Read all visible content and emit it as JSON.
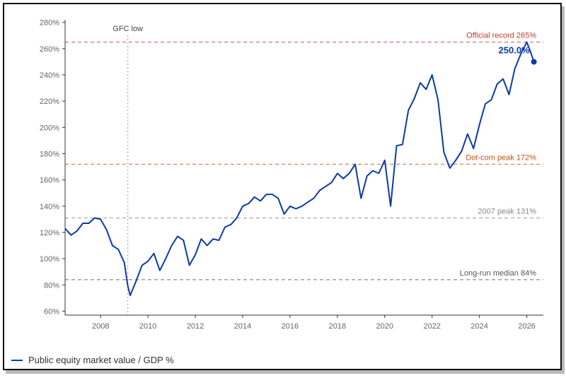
{
  "colors": {
    "series": "#0b3aa8",
    "record": "#c0392b",
    "dotcom": "#c0541a",
    "gray": "#888888"
  },
  "chart_data": {
    "type": "line",
    "title": "",
    "xlabel": "",
    "ylabel": "",
    "xlim": [
      2006.5,
      2026.7
    ],
    "ylim": [
      57,
      282
    ],
    "x_ticks": [
      2008,
      2010,
      2012,
      2014,
      2016,
      2018,
      2020,
      2022,
      2024,
      2026
    ],
    "y_ticks": [
      60,
      80,
      100,
      120,
      140,
      160,
      180,
      200,
      220,
      240,
      260,
      280
    ],
    "y_tick_labels": [
      "60%",
      "80%",
      "100%",
      "120%",
      "140%",
      "160%",
      "180%",
      "200%",
      "220%",
      "240%",
      "260%",
      "280%"
    ],
    "x_tick_labels": [
      "2008",
      "2010",
      "2012",
      "2014",
      "2016",
      "2018",
      "2020",
      "2022",
      "2024",
      "2026"
    ],
    "grid": false,
    "legend_position": "bottom-left",
    "series": [
      {
        "name": "Public equity market value / GDP %",
        "x": [
          2006.5,
          2006.75,
          2007.0,
          2007.25,
          2007.5,
          2007.75,
          2008.0,
          2008.25,
          2008.5,
          2008.75,
          2009.0,
          2009.15,
          2009.25,
          2009.5,
          2009.75,
          2010.0,
          2010.25,
          2010.5,
          2010.75,
          2011.0,
          2011.25,
          2011.5,
          2011.75,
          2012.0,
          2012.25,
          2012.5,
          2012.75,
          2013.0,
          2013.25,
          2013.5,
          2013.75,
          2014.0,
          2014.25,
          2014.5,
          2014.75,
          2015.0,
          2015.25,
          2015.5,
          2015.75,
          2016.0,
          2016.25,
          2016.5,
          2016.75,
          2017.0,
          2017.25,
          2017.5,
          2017.75,
          2018.0,
          2018.25,
          2018.5,
          2018.75,
          2019.0,
          2019.25,
          2019.5,
          2019.75,
          2020.0,
          2020.25,
          2020.5,
          2020.75,
          2021.0,
          2021.25,
          2021.5,
          2021.75,
          2022.0,
          2022.25,
          2022.5,
          2022.75,
          2023.0,
          2023.25,
          2023.5,
          2023.75,
          2024.0,
          2024.25,
          2024.5,
          2024.75,
          2025.0,
          2025.25,
          2025.5,
          2025.75,
          2026.0,
          2026.15,
          2026.3
        ],
        "y": [
          123,
          118,
          121,
          127,
          127,
          131,
          130,
          122,
          110,
          107,
          97,
          79,
          72,
          83,
          95,
          98,
          104,
          91,
          100,
          110,
          117,
          114,
          95,
          103,
          115,
          110,
          115,
          114,
          124,
          126,
          131,
          140,
          142,
          147,
          144,
          149,
          149,
          146,
          134,
          140,
          138,
          140,
          143,
          146,
          152,
          155,
          158,
          165,
          161,
          165,
          172,
          146,
          163,
          167,
          165,
          175,
          140,
          186,
          187,
          213,
          222,
          234,
          229,
          240,
          221,
          181,
          169,
          175,
          182,
          195,
          184,
          202,
          218,
          221,
          233,
          237,
          225,
          245,
          256,
          265,
          258,
          250
        ]
      }
    ],
    "reference_lines": [
      {
        "y": 265,
        "label": "Official record 265%",
        "color": "#c0392b"
      },
      {
        "y": 172,
        "label": "Dot-com peak 172%",
        "color": "#c0541a"
      },
      {
        "y": 131,
        "label": "2007 peak 131%",
        "color": "#888888"
      },
      {
        "y": 84,
        "label": "Long-run median 84%",
        "color": "#555555"
      }
    ],
    "vertical_marker": {
      "x": 2009.15,
      "label": "GFC low"
    },
    "endpoint": {
      "x": 2026.3,
      "y": 250,
      "label": "250.0%"
    }
  }
}
